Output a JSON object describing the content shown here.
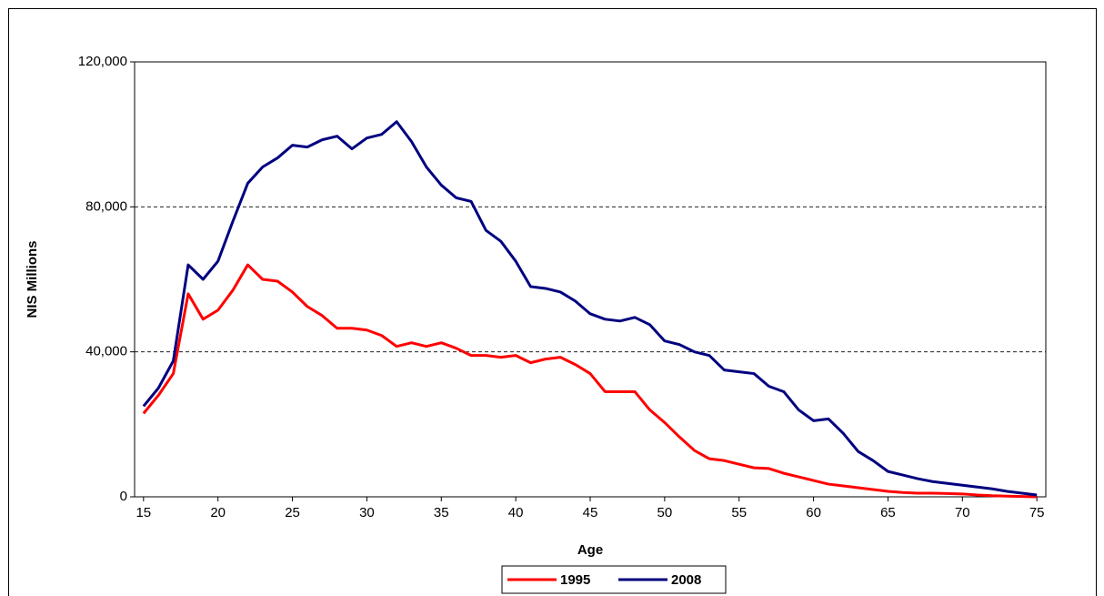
{
  "chart_data": {
    "type": "line",
    "x_label": "Age",
    "y_label": "NIS Millions",
    "x": [
      15,
      16,
      17,
      18,
      19,
      20,
      21,
      22,
      23,
      24,
      25,
      26,
      27,
      28,
      29,
      30,
      31,
      32,
      33,
      34,
      35,
      36,
      37,
      38,
      39,
      40,
      41,
      42,
      43,
      44,
      45,
      46,
      47,
      48,
      49,
      50,
      51,
      52,
      53,
      54,
      55,
      56,
      57,
      58,
      59,
      60,
      61,
      62,
      63,
      64,
      65,
      66,
      67,
      68,
      69,
      70,
      71,
      72,
      73,
      74,
      75
    ],
    "series": [
      {
        "name": "1995",
        "color": "#ff0000",
        "values": [
          23000,
          28000,
          34000,
          56000,
          49000,
          51500,
          57000,
          64000,
          60000,
          59500,
          56500,
          52500,
          50000,
          46500,
          46500,
          46000,
          44500,
          41500,
          42500,
          41500,
          42500,
          41000,
          39000,
          39000,
          38500,
          39000,
          37000,
          38000,
          38500,
          36500,
          34000,
          29000,
          29000,
          29000,
          24000,
          20500,
          16500,
          12800,
          10500,
          10000,
          9000,
          8000,
          7800,
          6500,
          5500,
          4500,
          3500,
          3000,
          2500,
          2000,
          1500,
          1200,
          1000,
          1000,
          900,
          800,
          500,
          300,
          200,
          100,
          0
        ]
      },
      {
        "name": "2008",
        "color": "#000080",
        "values": [
          25000,
          30000,
          37500,
          64000,
          60000,
          65000,
          76000,
          86500,
          91000,
          93500,
          97000,
          96500,
          98500,
          99500,
          96000,
          99000,
          100000,
          103500,
          98000,
          91000,
          86000,
          82500,
          81500,
          73500,
          70500,
          65000,
          58000,
          57500,
          56500,
          54000,
          50500,
          49000,
          48500,
          49500,
          47500,
          43000,
          42000,
          40000,
          39000,
          35000,
          34500,
          34000,
          30500,
          29000,
          24000,
          21000,
          21500,
          17500,
          12500,
          10000,
          7000,
          6000,
          5000,
          4200,
          3700,
          3200,
          2700,
          2200,
          1500,
          1000,
          500
        ]
      }
    ],
    "xlim": [
      14.4,
      75.6
    ],
    "xticks": [
      15,
      20,
      25,
      30,
      35,
      40,
      45,
      50,
      55,
      60,
      65,
      70,
      75
    ],
    "ylim": [
      0,
      120000
    ],
    "yticks": [
      0,
      {
        "value": 40000,
        "label": "40,000"
      },
      {
        "value": 80000,
        "label": "80,000"
      },
      {
        "value": 120000,
        "label": "120,000"
      }
    ],
    "grid": true,
    "legend": "bottom"
  }
}
